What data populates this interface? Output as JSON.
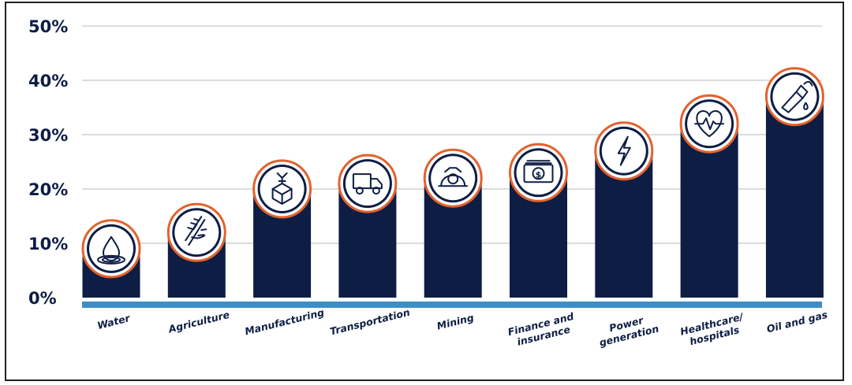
{
  "chart_data": {
    "type": "bar",
    "categories": [
      "Water",
      "Agriculture",
      "Manufacturing",
      "Transportation",
      "Mining",
      "Finance and insurance",
      "Power generation",
      "Healthcare/ hospitals",
      "Oil and gas"
    ],
    "category_lines": [
      [
        "Water"
      ],
      [
        "Agriculture"
      ],
      [
        "Manufacturing"
      ],
      [
        "Transportation"
      ],
      [
        "Mining"
      ],
      [
        "Finance and",
        "insurance"
      ],
      [
        "Power",
        "generation"
      ],
      [
        "Healthcare/",
        "hospitals"
      ],
      [
        "Oil and gas"
      ]
    ],
    "values": [
      9,
      12,
      20,
      21,
      22,
      23,
      27,
      32,
      37
    ],
    "icons": [
      "water-drop-icon",
      "wheat-icon",
      "factory-robot-icon",
      "truck-icon",
      "mining-helmet-icon",
      "money-bill-icon",
      "lightning-bolt-icon",
      "heart-pulse-icon",
      "fuel-nozzle-icon"
    ],
    "yticks": [
      "0%",
      "10%",
      "20%",
      "30%",
      "40%",
      "50%"
    ],
    "ylim": [
      0,
      50
    ],
    "grid": true,
    "colors": {
      "bar": "#0d1d44",
      "baseline": "#3a8fc9",
      "icon_ring": "#e2622d",
      "grid": "#c8c8c8",
      "text": "#0d1d44"
    }
  }
}
